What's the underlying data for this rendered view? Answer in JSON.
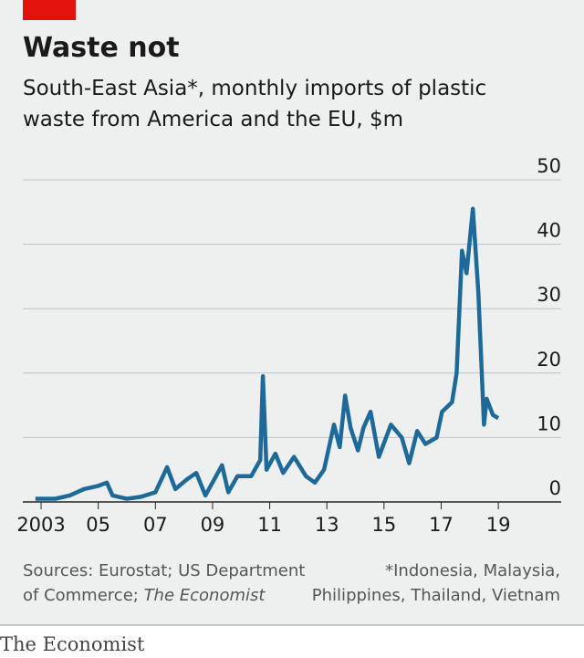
{
  "chart_data": {
    "type": "line",
    "title": "Waste not",
    "subtitle": [
      "South-East Asia*, monthly imports of plastic",
      "waste from America and the EU, $m"
    ],
    "x": [
      2002.8,
      2003.5,
      2004.0,
      2004.5,
      2005.0,
      2005.3,
      2005.5,
      2006.0,
      2006.5,
      2007.0,
      2007.41,
      2007.7,
      2008.1,
      2008.43,
      2008.75,
      2009.33,
      2009.55,
      2009.87,
      2010.35,
      2010.67,
      2010.76,
      2010.89,
      2011.2,
      2011.47,
      2011.85,
      2012.27,
      2012.58,
      2012.9,
      2013.25,
      2013.45,
      2013.64,
      2013.83,
      2014.09,
      2014.28,
      2014.53,
      2014.82,
      2015.24,
      2015.62,
      2015.88,
      2016.16,
      2016.45,
      2016.84,
      2017.03,
      2017.38,
      2017.54,
      2017.73,
      2017.89,
      2018.11,
      2018.3,
      2018.5,
      2018.59,
      2018.81,
      2019.0
    ],
    "series": [
      {
        "name": "Imports",
        "color": "#1d6a9a",
        "values": [
          0.5,
          0.5,
          1,
          2,
          2.5,
          3,
          1,
          0.5,
          0.8,
          1.5,
          5.4,
          2,
          3.5,
          4.5,
          1,
          5.7,
          1.5,
          4,
          4,
          6.5,
          19.5,
          5,
          7.5,
          4.5,
          7,
          4,
          3,
          5,
          12,
          8.5,
          16.5,
          11.5,
          8,
          11.5,
          14,
          7,
          12,
          10,
          6,
          11,
          9,
          10,
          14,
          15.5,
          20,
          39,
          35.5,
          45.5,
          32.5,
          12,
          16,
          13.5,
          13
        ]
      }
    ],
    "xlim": [
      2002.36,
      2021.2
    ],
    "ylim": [
      0,
      50
    ],
    "xticks": [
      2003,
      {
        "value": 2005,
        "label": "05"
      },
      {
        "value": 2007,
        "label": "07"
      },
      {
        "value": 2009,
        "label": "09"
      },
      {
        "value": 2011,
        "label": "11"
      },
      {
        "value": 2013,
        "label": "13"
      },
      {
        "value": 2015,
        "label": "15"
      },
      {
        "value": 2017,
        "label": "17"
      },
      {
        "value": 2019,
        "label": "19"
      }
    ],
    "yticks": [
      0,
      10,
      20,
      30,
      40,
      50
    ],
    "grid": true,
    "source": [
      "Sources: Eurostat; US Department",
      "of Commerce; ",
      "The Economist"
    ],
    "footnote": [
      "*Indonesia, Malaysia,",
      "Philippines, Thailand, Vietnam"
    ],
    "brand": "The Economist"
  }
}
